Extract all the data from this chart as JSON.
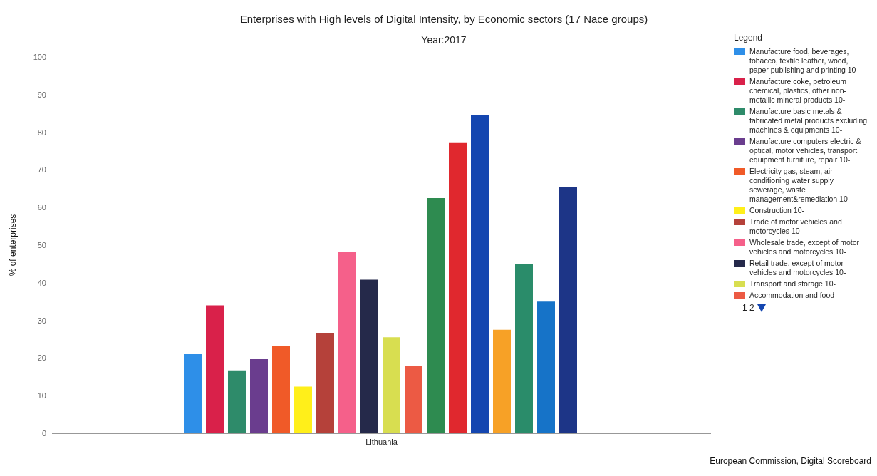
{
  "chart_data": {
    "type": "bar",
    "title": "Enterprises with High levels of Digital Intensity, by Economic sectors (17 Nace groups)",
    "subtitle": "Year:2017",
    "ylabel": "% of enterprises",
    "legend_title": "Legend",
    "categories": [
      "Lithuania"
    ],
    "series": [
      {
        "name": "Manufacture food, beverages, tobacco, textile leather, wood, paper publishing and printing 10-",
        "color": "#2e8fe8",
        "values": [
          21
        ]
      },
      {
        "name": "Manufacture coke, petroleum chemical, plastics, other non-metallic mineral products 10-",
        "color": "#d9214a",
        "values": [
          34
        ]
      },
      {
        "name": "Manufacture basic metals & fabricated metal products excluding machines & equipments 10-",
        "color": "#2e8b6a",
        "values": [
          16.7
        ]
      },
      {
        "name": "Manufacture computers electric & optical, motor vehicles, transport equipment furniture, repair 10-",
        "color": "#6a3d8e",
        "values": [
          19.7
        ]
      },
      {
        "name": "Electricity gas, steam, air conditioning water supply sewerage, waste management&remediation 10-",
        "color": "#f05a28",
        "values": [
          23.2
        ]
      },
      {
        "name": "Construction 10-",
        "color": "#ffef1a",
        "values": [
          12.4
        ]
      },
      {
        "name": "Trade of motor vehicles and motorcycles 10-",
        "color": "#b5413a",
        "values": [
          26.6
        ]
      },
      {
        "name": "Wholesale trade, except of motor vehicles and motorcycles 10-",
        "color": "#f5608a",
        "values": [
          48.3
        ]
      },
      {
        "name": "Retail trade, except of motor vehicles and motorcycles 10-",
        "color": "#25294a",
        "values": [
          40.8
        ]
      },
      {
        "name": "Transport and storage 10-",
        "color": "#d8de50",
        "values": [
          25.5
        ]
      },
      {
        "name": "Accommodation and food",
        "color": "#ec5a44",
        "values": [
          18
        ]
      },
      {
        "color": "#2e8b50",
        "values": [
          62.5
        ]
      },
      {
        "color": "#e0282e",
        "values": [
          77.3
        ]
      },
      {
        "color": "#1446b0",
        "values": [
          84.6
        ]
      },
      {
        "color": "#f7a126",
        "values": [
          27.5
        ]
      },
      {
        "color": "#2a8c6a",
        "values": [
          44.9
        ]
      },
      {
        "color": "#1673c8",
        "values": [
          35
        ]
      },
      {
        "color": "#1d3587",
        "values": [
          65.4
        ]
      }
    ],
    "ylim": [
      0,
      100
    ],
    "yticks": [
      0,
      10,
      20,
      30,
      40,
      50,
      60,
      70,
      80,
      90,
      100
    ],
    "grid": false,
    "legend": "right",
    "annotations": [
      "1 2",
      "European Commission, Digital Scoreboard"
    ]
  }
}
